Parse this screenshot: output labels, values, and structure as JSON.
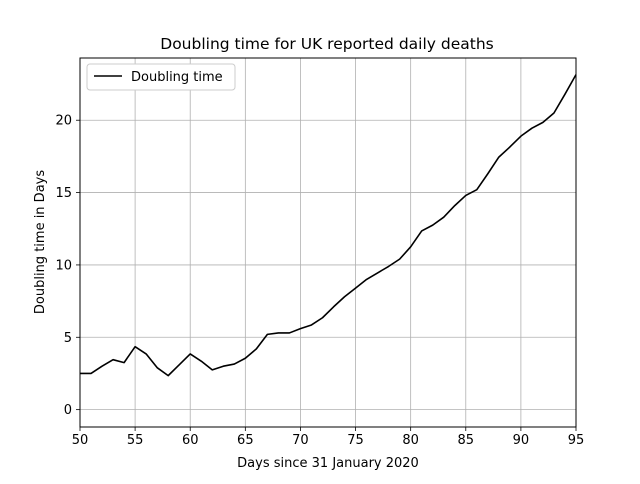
{
  "chart_data": {
    "type": "line",
    "title": "Doubling time for UK reported daily deaths",
    "xlabel": "Days since 31 January 2020",
    "ylabel": "Doubling time in Days",
    "xlim": [
      50,
      95
    ],
    "ylim": [
      -1.2,
      24.3
    ],
    "xticks": [
      50,
      55,
      60,
      65,
      70,
      75,
      80,
      85,
      90,
      95
    ],
    "yticks": [
      0,
      5,
      10,
      15,
      20
    ],
    "grid": true,
    "legend_position": "upper-left",
    "series": [
      {
        "name": "Doubling time",
        "color": "#000000",
        "x": [
          50,
          51,
          52,
          53,
          54,
          55,
          56,
          57,
          58,
          59,
          60,
          61,
          62,
          63,
          64,
          65,
          66,
          67,
          68,
          69,
          70,
          71,
          72,
          73,
          74,
          75,
          76,
          77,
          78,
          79,
          80,
          81,
          82,
          83,
          84,
          85,
          86,
          87,
          88,
          89,
          90,
          91,
          92,
          93,
          94,
          95
        ],
        "y": [
          2.5,
          2.5,
          3.0,
          3.45,
          3.25,
          4.35,
          3.85,
          2.9,
          2.35,
          3.1,
          3.85,
          3.35,
          2.75,
          3.0,
          3.15,
          3.55,
          4.2,
          5.2,
          5.3,
          5.3,
          5.6,
          5.85,
          6.35,
          7.1,
          7.8,
          8.4,
          9.0,
          9.45,
          9.9,
          10.4,
          11.25,
          12.35,
          12.75,
          13.3,
          14.1,
          14.8,
          15.2,
          16.3,
          17.45,
          18.15,
          18.9,
          19.45,
          19.85,
          20.5,
          21.8,
          23.15
        ]
      }
    ]
  }
}
